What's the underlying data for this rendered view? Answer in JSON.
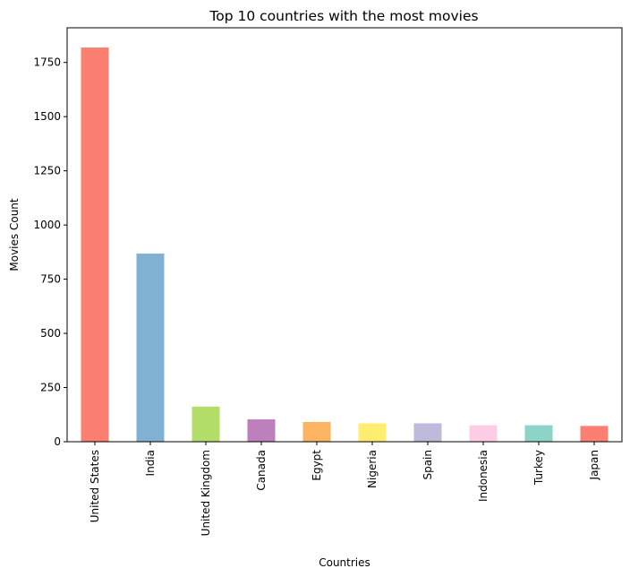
{
  "chart_data": {
    "type": "bar",
    "title": "Top 10 countries with the most movies",
    "xlabel": "Countries",
    "ylabel": "Movies Count",
    "categories": [
      "United States",
      "India",
      "United Kingdom",
      "Canada",
      "Egypt",
      "Nigeria",
      "Spain",
      "Indonesia",
      "Turkey",
      "Japan"
    ],
    "values": [
      1819,
      868,
      162,
      103,
      91,
      85,
      85,
      76,
      76,
      73
    ],
    "colors": [
      "#fb8072",
      "#80b1d3",
      "#b3de69",
      "#bc80bd",
      "#fdb462",
      "#ffed6f",
      "#bebada",
      "#fccde5",
      "#8dd3c7",
      "#fb8072"
    ],
    "ylim": [
      0,
      1910
    ],
    "yticks": [
      0,
      250,
      500,
      750,
      1000,
      1250,
      1500,
      1750
    ],
    "grid": false,
    "legend": "none"
  }
}
